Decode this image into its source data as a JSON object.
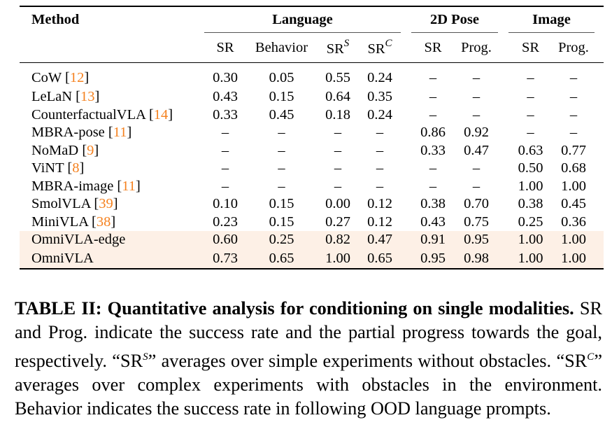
{
  "header": {
    "method": "Method",
    "groups": [
      "Language",
      "2D Pose",
      "Image"
    ],
    "subcols": [
      {
        "t": "SR",
        "sup": ""
      },
      {
        "t": "Behavior",
        "sup": ""
      },
      {
        "t": "SR",
        "sup": "S"
      },
      {
        "t": "SR",
        "sup": "C"
      },
      {
        "t": "SR",
        "sup": ""
      },
      {
        "t": "Prog.",
        "sup": ""
      },
      {
        "t": "SR",
        "sup": ""
      },
      {
        "t": "Prog.",
        "sup": ""
      }
    ]
  },
  "rows": [
    {
      "name": "CoW",
      "cite": "12",
      "vals": [
        "0.30",
        "0.05",
        "0.55",
        "0.24",
        "–",
        "–",
        "–",
        "–"
      ],
      "bold": []
    },
    {
      "name": "LeLaN",
      "cite": "13",
      "vals": [
        "0.43",
        "0.15",
        "0.64",
        "0.35",
        "–",
        "–",
        "–",
        "–"
      ],
      "bold": []
    },
    {
      "name": "CounterfactualVLA",
      "cite": "14",
      "vals": [
        "0.33",
        "0.45",
        "0.18",
        "0.24",
        "–",
        "–",
        "–",
        "–"
      ],
      "bold": []
    },
    {
      "name": "MBRA-pose",
      "cite": "11",
      "vals": [
        "–",
        "–",
        "–",
        "–",
        "0.86",
        "0.92",
        "–",
        "–"
      ],
      "bold": []
    },
    {
      "name": "NoMaD",
      "cite": "9",
      "vals": [
        "–",
        "–",
        "–",
        "–",
        "0.33",
        "0.47",
        "0.63",
        "0.77"
      ],
      "bold": []
    },
    {
      "name": "ViNT",
      "cite": "8",
      "vals": [
        "–",
        "–",
        "–",
        "–",
        "–",
        "–",
        "0.50",
        "0.68"
      ],
      "bold": []
    },
    {
      "name": "MBRA-image",
      "cite": "11",
      "vals": [
        "–",
        "–",
        "–",
        "–",
        "–",
        "–",
        "1.00",
        "1.00"
      ],
      "bold": [
        6,
        7
      ]
    },
    {
      "name": "SmolVLA",
      "cite": "39",
      "vals": [
        "0.10",
        "0.15",
        "0.00",
        "0.12",
        "0.38",
        "0.70",
        "0.38",
        "0.45"
      ],
      "bold": []
    },
    {
      "name": "MiniVLA",
      "cite": "38",
      "vals": [
        "0.23",
        "0.15",
        "0.27",
        "0.12",
        "0.43",
        "0.75",
        "0.25",
        "0.36"
      ],
      "bold": []
    },
    {
      "name": "OmniVLA-edge",
      "cite": "",
      "highlight": true,
      "vals": [
        "0.60",
        "0.25",
        "0.82",
        "0.47",
        "0.91",
        "0.95",
        "1.00",
        "1.00"
      ],
      "bold": [
        6,
        7
      ]
    },
    {
      "name": "OmniVLA",
      "cite": "",
      "highlight": true,
      "vals": [
        "0.73",
        "0.65",
        "1.00",
        "0.65",
        "0.95",
        "0.98",
        "1.00",
        "1.00"
      ],
      "bold": [
        0,
        1,
        2,
        3,
        4,
        5,
        6,
        7
      ]
    }
  ],
  "caption": {
    "label": "TABLE II: Quantitative analysis for conditioning on single modalities.",
    "p1": " SR and Prog. indicate the success rate and the partial progress towards the goal, respectively. “SR",
    "sup1": "S",
    "p2": "” averages over simple experiments without obstacles. “SR",
    "sup2": "C",
    "p3": "” averages over complex experiments with obstacles in the environment. Behavior indicates the success rate in following OOD language prompts."
  },
  "colors": {
    "highlight": "#fdf0e6",
    "citation": "#f58220"
  }
}
